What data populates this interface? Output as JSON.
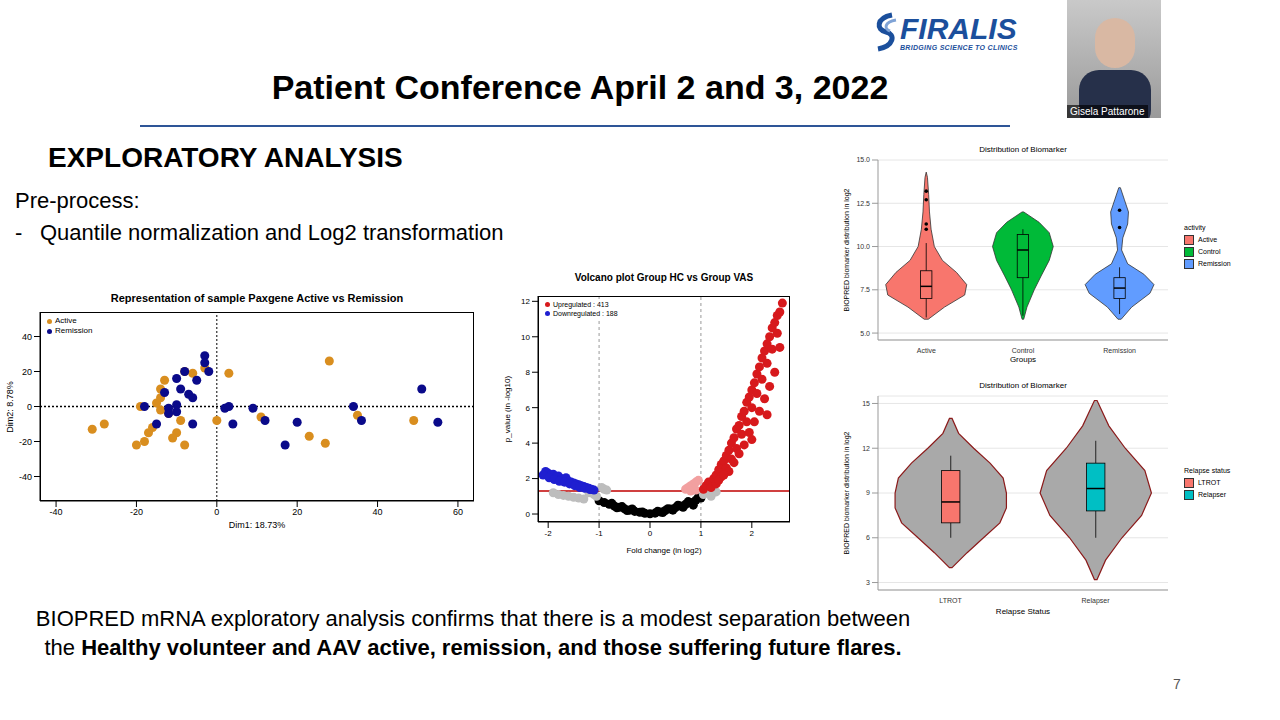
{
  "slide": {
    "title": "Patient Conference April 2 and 3, 2022",
    "heading": "EXPLORATORY ANALYSIS",
    "subheading": "Pre-process:",
    "bullet_mark": "-",
    "bullets": [
      "Quantile normalization and Log2 transformation"
    ],
    "conclusion": {
      "text": "BIOPRED mRNA exploratory analysis confirms that there is a modest separation between the",
      "bold": "Healthy volunteer and AAV active, remission, and those suffering future flares."
    },
    "page": 7,
    "logo": {
      "name": "FIRALIS",
      "tagline": "BRIDGING SCIENCE TO CLINICS"
    },
    "presenter": "Gisela Pattarone"
  },
  "chart_data": [
    {
      "type": "scatter",
      "title": "Representation of sample Paxgene Active vs Remission",
      "x_label": "Dim1: 18.73%",
      "y_label": "Dim2: 8.78%",
      "xlim": [
        -44,
        64
      ],
      "xticks": [
        -40,
        -20,
        0,
        20,
        40,
        60
      ],
      "ylim": [
        -54,
        54
      ],
      "yticks": [
        -40,
        -20,
        0,
        20,
        40
      ],
      "vlines": [
        0
      ],
      "hlines": [
        0
      ],
      "legend": "upper left",
      "series": [
        {
          "name": "Active",
          "color": "#d98e1f",
          "marker": "circle",
          "x": [
            -31,
            -28,
            -20,
            -18,
            -17,
            -16,
            -14,
            -15,
            -14,
            -14,
            -13,
            -12,
            -8,
            -9,
            -10,
            -11,
            -8,
            -6,
            -3,
            3,
            0,
            11,
            23,
            27,
            28,
            35,
            49,
            -19
          ],
          "y": [
            -13,
            -10,
            -22,
            -20,
            -15,
            -12,
            -2,
            2,
            5,
            10,
            15,
            -4,
            -22,
            -8,
            -15,
            -18,
            20,
            19,
            22,
            19,
            -8,
            -6,
            -17,
            -21,
            26,
            -5,
            -8,
            0
          ]
        },
        {
          "name": "Remission",
          "color": "#0a0a8a",
          "marker": "circle",
          "x": [
            -18,
            -15,
            -13,
            -12,
            -10,
            -10,
            -9,
            -8,
            -7,
            -6,
            -5,
            -3,
            -3,
            -2,
            -10,
            -12,
            2,
            3,
            4,
            9,
            12,
            17,
            20,
            34,
            36,
            51,
            55,
            -6
          ],
          "y": [
            0,
            -10,
            8,
            -1,
            -3,
            16,
            10,
            20,
            7,
            5,
            15,
            29,
            25,
            20,
            1,
            -4,
            -1,
            0,
            -10,
            -1,
            -8,
            -22,
            -9,
            0,
            -8,
            10,
            -9,
            -10
          ]
        }
      ]
    },
    {
      "type": "scatter",
      "title": "Volcano plot Group HC vs Group VAS",
      "x_label": "Fold change (in log2)",
      "y_label": "p_value (in -log10)",
      "xlim": [
        -2.2,
        2.75
      ],
      "xticks": [
        -2,
        -1,
        0,
        1,
        2
      ],
      "ylim": [
        -0.45,
        12.3
      ],
      "yticks": [
        0,
        2,
        4,
        6,
        8,
        10,
        12
      ],
      "vlines": [
        -1,
        1
      ],
      "hlines": [
        1.3
      ],
      "legend": "upper left",
      "series": [
        {
          "color": "#000000",
          "marker": "circle",
          "x": [
            -1.0,
            -0.9,
            -0.8,
            -0.7,
            -0.6,
            -0.5,
            -0.4,
            -0.3,
            -0.2,
            -0.1,
            0,
            0.1,
            0.2,
            0.3,
            0.4,
            0.5,
            0.6,
            0.7,
            0.8,
            0.9,
            1.0,
            -0.75,
            -0.55,
            -0.35,
            -0.15,
            0.15,
            0.35,
            0.55,
            0.75,
            0.95,
            -0.65,
            -0.45,
            0.25,
            0.45,
            0.65,
            0.85
          ],
          "y": [
            0.75,
            0.65,
            0.55,
            0.45,
            0.38,
            0.3,
            0.22,
            0.15,
            0.1,
            0.04,
            0.01,
            0.05,
            0.12,
            0.2,
            0.28,
            0.36,
            0.45,
            0.55,
            0.65,
            0.78,
            0.9,
            0.6,
            0.42,
            0.28,
            0.12,
            0.15,
            0.3,
            0.5,
            0.7,
            0.95,
            0.35,
            0.2,
            0.08,
            0.22,
            0.38,
            0.5
          ]
        },
        {
          "color": "#bdbdbd",
          "marker": "circle",
          "x": [
            -1.9,
            -1.8,
            -1.7,
            -1.6,
            -1.5,
            -1.4,
            -1.3,
            -1.2,
            -1.1,
            -1.05,
            -0.95,
            -0.9,
            -0.85,
            1.05,
            1.1,
            1.2,
            1.3
          ],
          "y": [
            1.2,
            1.1,
            1.05,
            1.0,
            0.95,
            0.9,
            0.85,
            1.2,
            1.1,
            1.0,
            1.5,
            1.4,
            1.35,
            1.1,
            1.2,
            1.0,
            1.25
          ]
        },
        {
          "color": "#f2a0a0",
          "marker": "circle",
          "x": [
            0.7,
            0.75,
            0.8,
            0.85,
            0.9,
            0.95,
            0.8,
            0.9
          ],
          "y": [
            1.4,
            1.5,
            1.6,
            1.7,
            1.8,
            1.9,
            1.3,
            1.35
          ]
        },
        {
          "name": "Upregulated : 413",
          "color": "#d7191c",
          "marker": "circle",
          "x": [
            1.05,
            1.1,
            1.15,
            1.2,
            1.25,
            1.3,
            1.3,
            1.35,
            1.4,
            1.4,
            1.45,
            1.5,
            1.5,
            1.55,
            1.6,
            1.6,
            1.65,
            1.7,
            1.7,
            1.75,
            1.8,
            1.8,
            1.85,
            1.9,
            1.9,
            1.95,
            2.0,
            2.0,
            2.05,
            2.1,
            2.1,
            2.15,
            2.2,
            2.2,
            2.25,
            2.3,
            2.3,
            2.35,
            2.4,
            2.4,
            2.45,
            2.5,
            2.5,
            2.55,
            2.6,
            1.35,
            1.55,
            1.75,
            1.95,
            2.15,
            2.35,
            1.85,
            2.05,
            2.25,
            2.45,
            1.65,
            2.0,
            2.3,
            2.55,
            1.45
          ],
          "y": [
            1.4,
            1.6,
            1.8,
            1.5,
            2.0,
            2.2,
            1.7,
            2.5,
            2.1,
            2.8,
            3.0,
            2.6,
            3.3,
            3.6,
            3.1,
            4.0,
            4.3,
            3.7,
            4.8,
            5.0,
            4.5,
            5.5,
            5.8,
            5.2,
            6.3,
            6.6,
            6.0,
            7.0,
            7.4,
            6.8,
            7.9,
            8.3,
            7.6,
            8.8,
            9.2,
            8.5,
            9.6,
            10.0,
            9.3,
            10.5,
            10.8,
            10.2,
            11.2,
            11.4,
            11.9,
            1.9,
            2.4,
            3.4,
            4.6,
            5.8,
            7.2,
            3.9,
            5.2,
            6.5,
            8.0,
            2.9,
            4.2,
            5.6,
            9.4,
            2.2
          ]
        },
        {
          "name": "Downregulated : 188",
          "color": "#1f1fd0",
          "marker": "circle",
          "x": [
            -2.05,
            -2.0,
            -1.95,
            -1.9,
            -1.85,
            -1.8,
            -1.75,
            -1.7,
            -1.65,
            -1.6,
            -1.55,
            -1.5,
            -1.45,
            -1.4,
            -1.35,
            -1.3,
            -1.25,
            -1.2,
            -1.15,
            -1.1,
            -2.1,
            -1.98,
            -1.88,
            -1.78,
            -1.68,
            -1.58,
            -1.48,
            -1.38,
            -1.28,
            -1.18
          ],
          "y": [
            2.4,
            2.3,
            2.2,
            2.25,
            2.1,
            2.15,
            2.0,
            1.95,
            2.05,
            1.85,
            1.8,
            1.75,
            1.7,
            1.65,
            1.6,
            1.55,
            1.5,
            1.45,
            1.4,
            1.35,
            2.2,
            2.05,
            1.95,
            1.85,
            1.8,
            1.7,
            1.6,
            1.5,
            1.45,
            1.38
          ]
        }
      ]
    },
    {
      "type": "violin",
      "title": "Distribution of Biomarker",
      "x_label": "Groups",
      "y_label": "BIOPRED biomarker distribution in log2",
      "legend_title": "activity",
      "legend": "right",
      "grid": true,
      "ylim": [
        4.6,
        15
      ],
      "yticks": [
        {
          "value": 5,
          "label": "5.0"
        },
        {
          "value": 7.5,
          "label": "7.5"
        },
        {
          "value": 10,
          "label": "10.0"
        },
        {
          "value": 12.5,
          "label": "12.5"
        },
        {
          "value": 15,
          "label": "15.0"
        }
      ],
      "categories": [
        "Active",
        "Control",
        "Remission"
      ],
      "series": [
        {
          "name": "Active",
          "color": "#f8766d",
          "density_y": [
            5.8,
            6.5,
            7.2,
            7.8,
            8.5,
            9.2,
            10.0,
            11.0,
            12.0,
            13.0,
            14.0,
            14.3
          ],
          "density": [
            0.05,
            0.45,
            0.95,
            1.0,
            0.75,
            0.4,
            0.2,
            0.12,
            0.08,
            0.06,
            0.03,
            0.0
          ],
          "box": {
            "whisker_low": 5.9,
            "q1": 7.0,
            "median": 7.7,
            "q3": 8.6,
            "whisker_high": 10.2
          },
          "outliers": [
            11.0,
            11.3,
            12.7,
            13.2
          ]
        },
        {
          "name": "Control",
          "color": "#00ba38",
          "density_y": [
            5.8,
            6.5,
            7.5,
            8.3,
            9.2,
            10.0,
            10.8,
            11.4,
            12.0
          ],
          "density": [
            0.02,
            0.1,
            0.28,
            0.45,
            0.65,
            0.75,
            0.65,
            0.4,
            0.02
          ],
          "box": {
            "whisker_low": 6.0,
            "q1": 8.2,
            "median": 9.8,
            "q3": 10.7,
            "whisker_high": 11.0
          }
        },
        {
          "name": "Remission",
          "color": "#619cff",
          "density_y": [
            5.8,
            6.5,
            7.3,
            7.8,
            8.4,
            9.0,
            9.8,
            10.5,
            11.3,
            12.0,
            12.7,
            13.4
          ],
          "density": [
            0.04,
            0.3,
            0.75,
            0.85,
            0.6,
            0.2,
            0.05,
            0.08,
            0.2,
            0.22,
            0.12,
            0.02
          ],
          "box": {
            "whisker_low": 6.1,
            "q1": 7.0,
            "median": 7.6,
            "q3": 8.2,
            "whisker_high": 8.8
          },
          "outliers": [
            11.1,
            12.1
          ]
        }
      ]
    },
    {
      "type": "violin",
      "title": "Distribution of Biomarker",
      "x_label": "Relapse Status",
      "y_label": "BIOPRED biomarker distribution in log2",
      "legend_title": "Relapse status",
      "legend": "right",
      "grid": true,
      "color": "#a9a9a9",
      "ylim": [
        2.5,
        15.5
      ],
      "yticks": [
        3,
        6,
        9,
        12,
        15
      ],
      "categories": [
        "LTROT",
        "Relapser"
      ],
      "series": [
        {
          "name": "LTROT",
          "color": "#f8766d",
          "density_y": [
            4.0,
            5.0,
            6.0,
            7.0,
            8.0,
            9.0,
            10.0,
            11.0,
            12.0,
            13.0,
            14.0
          ],
          "density": [
            0.02,
            0.25,
            0.5,
            0.75,
            0.85,
            0.85,
            0.8,
            0.6,
            0.35,
            0.12,
            0.02
          ],
          "box": {
            "whisker_low": 6.0,
            "q1": 7.0,
            "median": 8.4,
            "q3": 10.5,
            "whisker_high": 11.5
          }
        },
        {
          "name": "Relapser",
          "color": "#00bfc4",
          "density_y": [
            3.2,
            4.5,
            6.0,
            7.5,
            9.0,
            10.5,
            12.0,
            13.5,
            15.2
          ],
          "density": [
            0.02,
            0.15,
            0.4,
            0.7,
            0.85,
            0.75,
            0.45,
            0.2,
            0.02
          ],
          "box": {
            "whisker_low": 6.0,
            "q1": 7.8,
            "median": 9.3,
            "q3": 11.0,
            "whisker_high": 12.5
          }
        }
      ]
    }
  ]
}
